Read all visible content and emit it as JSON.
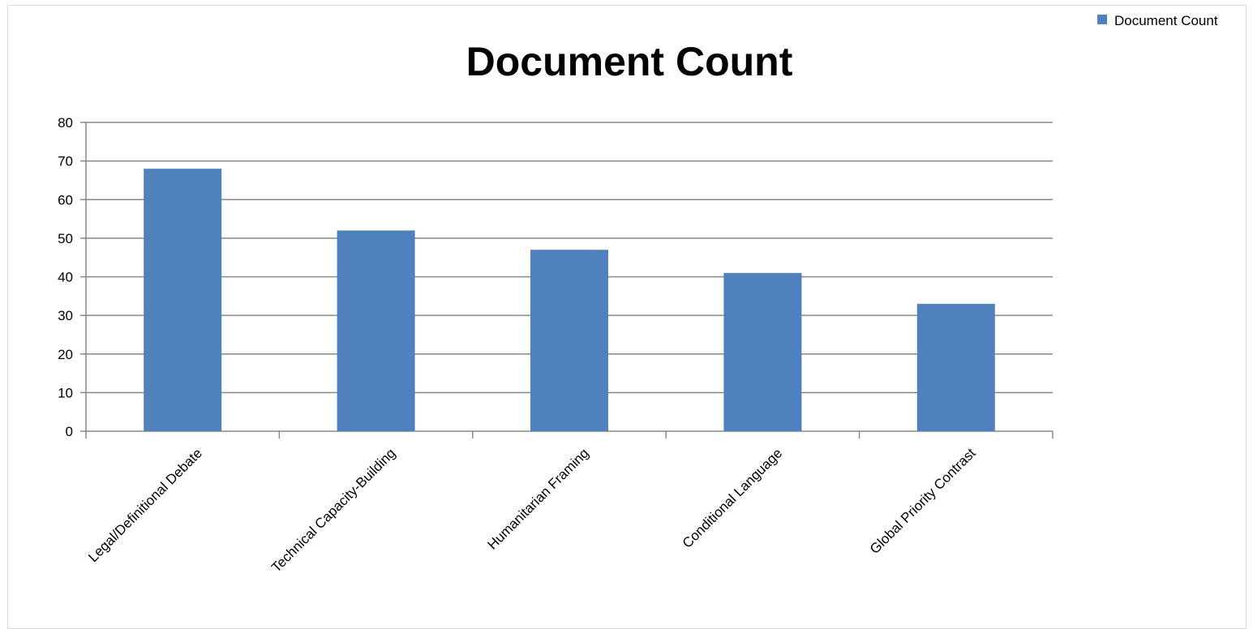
{
  "chart_data": {
    "type": "bar",
    "title": "Document Count",
    "xlabel": "",
    "ylabel": "",
    "categories": [
      "Legal/Definitional Debate",
      "Technical Capacity-Building",
      "Humanitarian Framing",
      "Conditional Language",
      "Global Priority Contrast"
    ],
    "series": [
      {
        "name": "Document Count",
        "values": [
          68,
          52,
          47,
          41,
          33
        ],
        "color": "#4f81bd"
      }
    ],
    "ylim": [
      0,
      80
    ],
    "yticks": [
      0,
      10,
      20,
      30,
      40,
      50,
      60,
      70,
      80
    ],
    "grid": true,
    "legend": "top-right"
  }
}
